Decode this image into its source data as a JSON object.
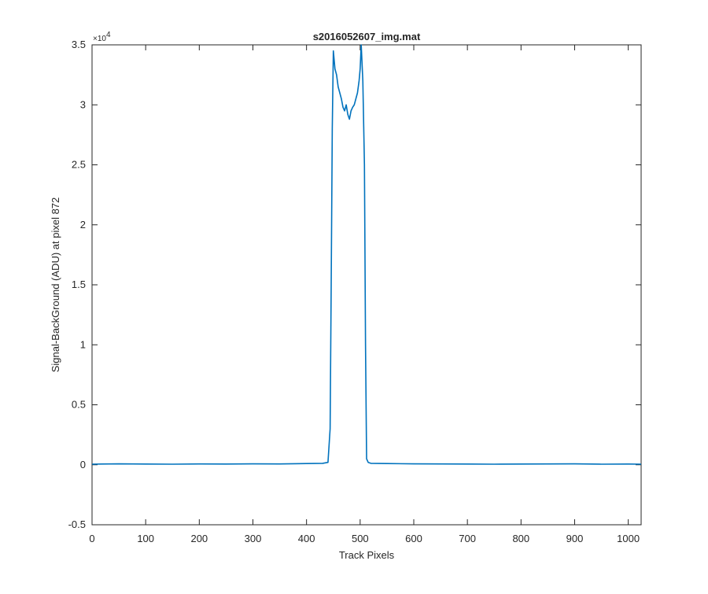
{
  "chart_data": {
    "type": "line",
    "title": "s2016052607_img.mat",
    "xlabel": "Track Pixels",
    "ylabel": "Signal-BackGround (ADU) at pixel 872",
    "y_exponent_label": "×10",
    "y_exponent_power": "4",
    "xlim": [
      0,
      1024
    ],
    "ylim": [
      -0.5,
      3.5
    ],
    "y_scale_factor": 10000,
    "x_ticks": [
      0,
      100,
      200,
      300,
      400,
      500,
      600,
      700,
      800,
      900,
      1000
    ],
    "x_tick_labels": [
      "0",
      "100",
      "200",
      "300",
      "400",
      "500",
      "600",
      "700",
      "800",
      "900",
      "1000"
    ],
    "y_ticks": [
      -0.5,
      0,
      0.5,
      1,
      1.5,
      2,
      2.5,
      3,
      3.5
    ],
    "y_tick_labels": [
      "-0.5",
      "0",
      "0.5",
      "1",
      "1.5",
      "2",
      "2.5",
      "3",
      "3.5"
    ],
    "grid": false,
    "line_color": "#0072BD",
    "series": [
      {
        "x": [
          0,
          50,
          100,
          150,
          200,
          250,
          300,
          350,
          400,
          430,
          440,
          444,
          446,
          448,
          450,
          453,
          456,
          459,
          462,
          465,
          468,
          471,
          474,
          477,
          480,
          483,
          486,
          489,
          492,
          495,
          498,
          500,
          502,
          505,
          508,
          510,
          512,
          515,
          520,
          550,
          600,
          650,
          700,
          750,
          800,
          850,
          900,
          950,
          1000,
          1024
        ],
        "y": [
          0.005,
          0.008,
          0.006,
          0.005,
          0.007,
          0.006,
          0.008,
          0.007,
          0.01,
          0.012,
          0.02,
          0.3,
          1.5,
          2.8,
          3.45,
          3.3,
          3.25,
          3.15,
          3.1,
          3.05,
          2.98,
          2.95,
          3.0,
          2.92,
          2.88,
          2.95,
          2.98,
          3.0,
          3.05,
          3.1,
          3.2,
          3.3,
          3.5,
          3.2,
          2.5,
          1.0,
          0.05,
          0.02,
          0.012,
          0.01,
          0.008,
          0.007,
          0.006,
          0.005,
          0.006,
          0.007,
          0.008,
          0.005,
          0.006,
          0.005
        ]
      }
    ]
  }
}
